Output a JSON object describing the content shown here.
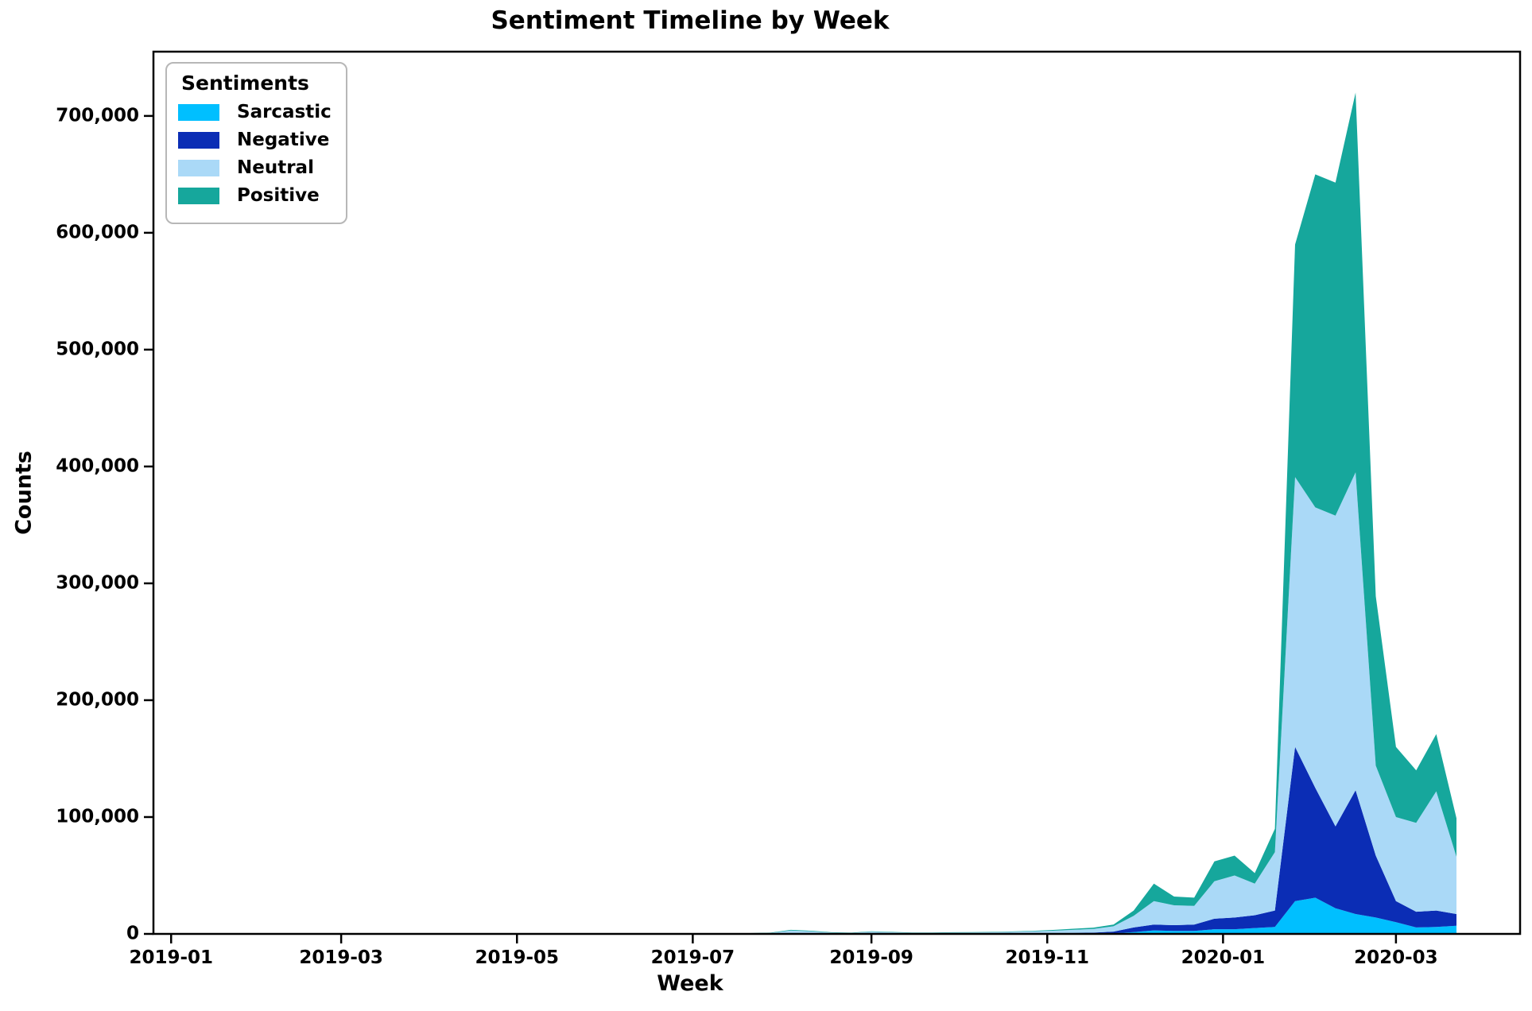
{
  "chart_data": {
    "type": "area",
    "stacked": true,
    "title": "Sentiment Timeline by Week",
    "xlabel": "Week",
    "ylabel": "Counts",
    "legend_title": "Sentiments",
    "legend_position": "upper-left",
    "grid": false,
    "ylim": [
      0,
      755000
    ],
    "x_start": "2018-12-30",
    "x_end": "2020-03-22",
    "x": [
      "2018-12-30",
      "2019-01-06",
      "2019-01-13",
      "2019-01-20",
      "2019-01-27",
      "2019-02-03",
      "2019-02-10",
      "2019-02-17",
      "2019-02-24",
      "2019-03-03",
      "2019-03-10",
      "2019-03-17",
      "2019-03-24",
      "2019-03-31",
      "2019-04-07",
      "2019-04-14",
      "2019-04-21",
      "2019-04-28",
      "2019-05-05",
      "2019-05-12",
      "2019-05-19",
      "2019-05-26",
      "2019-06-02",
      "2019-06-09",
      "2019-06-16",
      "2019-06-23",
      "2019-06-30",
      "2019-07-07",
      "2019-07-14",
      "2019-07-21",
      "2019-07-28",
      "2019-08-04",
      "2019-08-11",
      "2019-08-18",
      "2019-08-25",
      "2019-09-01",
      "2019-09-08",
      "2019-09-15",
      "2019-09-22",
      "2019-09-29",
      "2019-10-06",
      "2019-10-13",
      "2019-10-20",
      "2019-10-27",
      "2019-11-03",
      "2019-11-10",
      "2019-11-17",
      "2019-11-24",
      "2019-12-01",
      "2019-12-08",
      "2019-12-15",
      "2019-12-22",
      "2019-12-29",
      "2020-01-05",
      "2020-01-12",
      "2020-01-19",
      "2020-01-26",
      "2020-02-02",
      "2020-02-09",
      "2020-02-16",
      "2020-02-23",
      "2020-03-01",
      "2020-03-08",
      "2020-03-15",
      "2020-03-22"
    ],
    "series": [
      {
        "name": "Sarcastic",
        "color": "#00bfff",
        "values": [
          10,
          15,
          12,
          10,
          12,
          10,
          12,
          10,
          12,
          10,
          12,
          10,
          12,
          15,
          12,
          10,
          12,
          15,
          12,
          15,
          18,
          15,
          18,
          20,
          18,
          20,
          25,
          30,
          35,
          40,
          60,
          200,
          150,
          80,
          60,
          120,
          100,
          70,
          70,
          80,
          90,
          100,
          120,
          150,
          200,
          250,
          300,
          500,
          1500,
          3000,
          2500,
          2500,
          4000,
          4000,
          5000,
          6000,
          28000,
          31000,
          22000,
          17000,
          14000,
          10000,
          5500,
          6000,
          7000
        ]
      },
      {
        "name": "Negative",
        "color": "#0b2db5",
        "values": [
          30,
          40,
          35,
          30,
          38,
          32,
          36,
          30,
          35,
          32,
          36,
          30,
          35,
          45,
          38,
          32,
          36,
          45,
          38,
          45,
          55,
          45,
          55,
          60,
          55,
          60,
          75,
          90,
          100,
          120,
          180,
          500,
          400,
          220,
          180,
          320,
          260,
          200,
          200,
          220,
          240,
          260,
          320,
          400,
          500,
          650,
          800,
          1500,
          4000,
          5000,
          5000,
          5500,
          9000,
          10000,
          11000,
          14000,
          132000,
          94000,
          70000,
          106000,
          53000,
          18000,
          13500,
          14000,
          10000
        ]
      },
      {
        "name": "Neutral",
        "color": "#aad9f7",
        "values": [
          80,
          120,
          100,
          90,
          110,
          95,
          105,
          90,
          100,
          95,
          105,
          90,
          100,
          130,
          110,
          95,
          105,
          130,
          110,
          130,
          160,
          130,
          160,
          180,
          160,
          180,
          220,
          270,
          300,
          360,
          550,
          2200,
          1700,
          800,
          600,
          1400,
          1000,
          700,
          700,
          800,
          900,
          1000,
          1300,
          1600,
          2000,
          2600,
          3200,
          4500,
          10000,
          20000,
          17000,
          16000,
          32000,
          36000,
          27000,
          50000,
          231000,
          240000,
          266000,
          272000,
          77000,
          72000,
          76000,
          102000,
          49000
        ]
      },
      {
        "name": "Positive",
        "color": "#16a79c",
        "values": [
          40,
          60,
          50,
          45,
          55,
          48,
          52,
          45,
          50,
          48,
          52,
          45,
          50,
          65,
          55,
          48,
          52,
          65,
          55,
          65,
          80,
          65,
          80,
          90,
          80,
          90,
          110,
          130,
          150,
          180,
          270,
          600,
          500,
          300,
          260,
          400,
          340,
          280,
          280,
          300,
          320,
          340,
          400,
          500,
          700,
          900,
          1100,
          1500,
          4500,
          15000,
          7500,
          7000,
          17000,
          17000,
          9000,
          20000,
          199000,
          285000,
          285000,
          325000,
          145000,
          60000,
          45000,
          49000,
          33000
        ]
      }
    ],
    "xticks": [
      {
        "label": "2019-01",
        "day_offset": 2
      },
      {
        "label": "2019-03",
        "day_offset": 61
      },
      {
        "label": "2019-05",
        "day_offset": 122
      },
      {
        "label": "2019-07",
        "day_offset": 183
      },
      {
        "label": "2019-09",
        "day_offset": 245
      },
      {
        "label": "2019-11",
        "day_offset": 306
      },
      {
        "label": "2020-01",
        "day_offset": 367
      },
      {
        "label": "2020-03",
        "day_offset": 427
      }
    ],
    "yticks": [
      {
        "label": "0",
        "value": 0
      },
      {
        "label": "100,000",
        "value": 100000
      },
      {
        "label": "200,000",
        "value": 200000
      },
      {
        "label": "300,000",
        "value": 300000
      },
      {
        "label": "400,000",
        "value": 400000
      },
      {
        "label": "500,000",
        "value": 500000
      },
      {
        "label": "600,000",
        "value": 600000
      },
      {
        "label": "700,000",
        "value": 700000
      }
    ],
    "axis_color": "#000000"
  }
}
